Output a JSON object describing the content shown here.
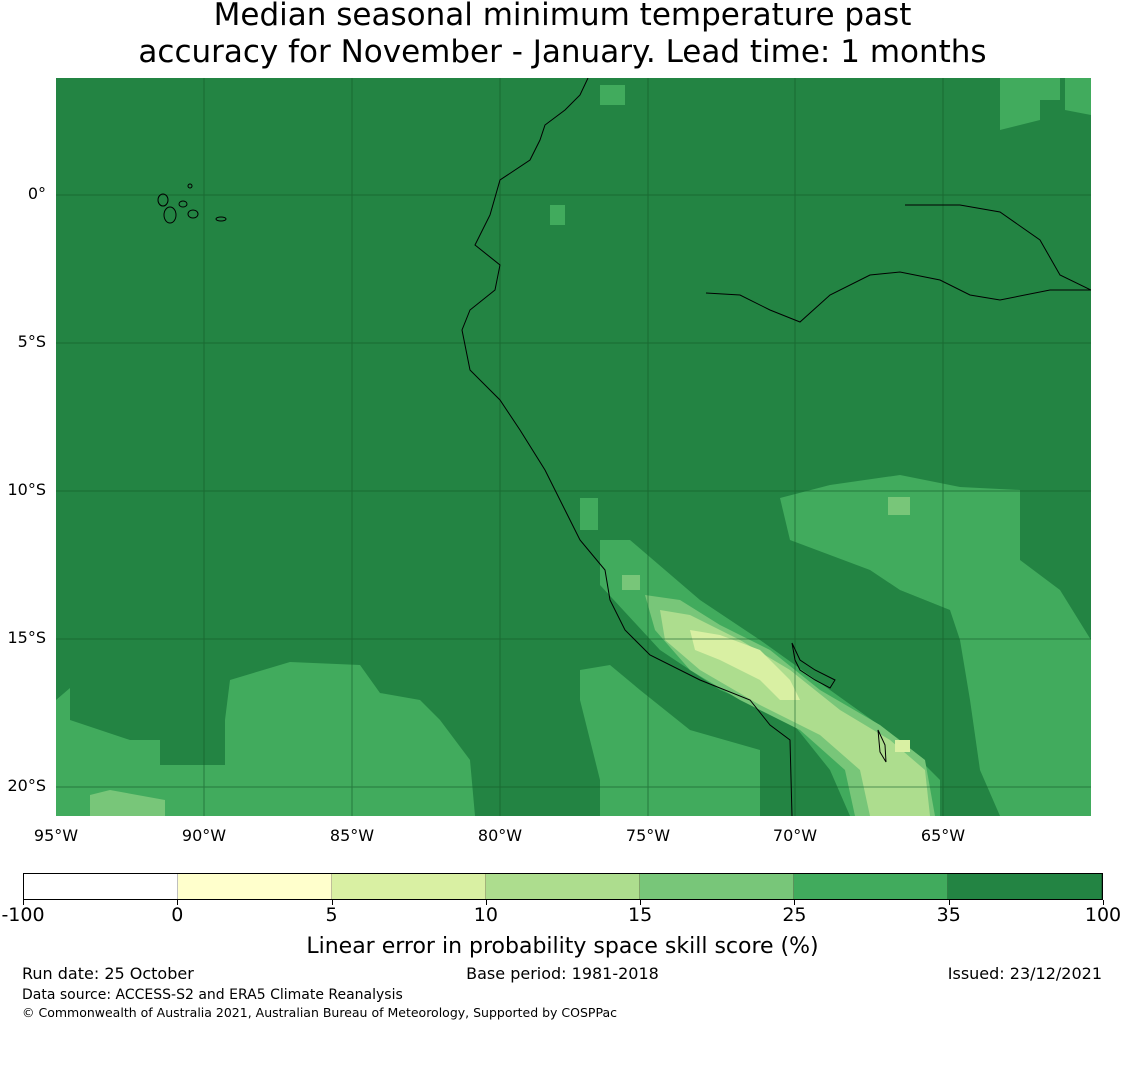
{
  "title": {
    "line1": "Median seasonal minimum temperature past",
    "line2": "accuracy for November - January. Lead time: 1 months"
  },
  "map": {
    "lat_labels": [
      "0°",
      "5°S",
      "10°S",
      "15°S",
      "20°S"
    ],
    "lon_labels": [
      "95°W",
      "90°W",
      "85°W",
      "80°W",
      "75°W",
      "70°W",
      "65°W"
    ],
    "colors": {
      "c0": "#ffffcc",
      "c5": "#d9f0a3",
      "c10": "#addd8e",
      "c15": "#78c679",
      "c25": "#41ab5d",
      "c35": "#238443"
    }
  },
  "colorbar": {
    "ticks": [
      "-100",
      "0",
      "5",
      "10",
      "15",
      "25",
      "35",
      "100"
    ],
    "colors": [
      "#ffffff",
      "#ffffcc",
      "#d9f0a3",
      "#addd8e",
      "#78c679",
      "#41ab5d",
      "#238443"
    ],
    "label": "Linear error in probability space skill score (%)"
  },
  "footer": {
    "run_date": "Run date: 25 October",
    "base_period": "Base period: 1981-2018",
    "issued": "Issued: 23/12/2021",
    "data_source": "Data source: ACCESS-S2 and ERA5 Climate Reanalysis",
    "copyright": "© Commonwealth of Australia 2021, Australian Bureau of Meteorology, Supported by COSPPac"
  }
}
